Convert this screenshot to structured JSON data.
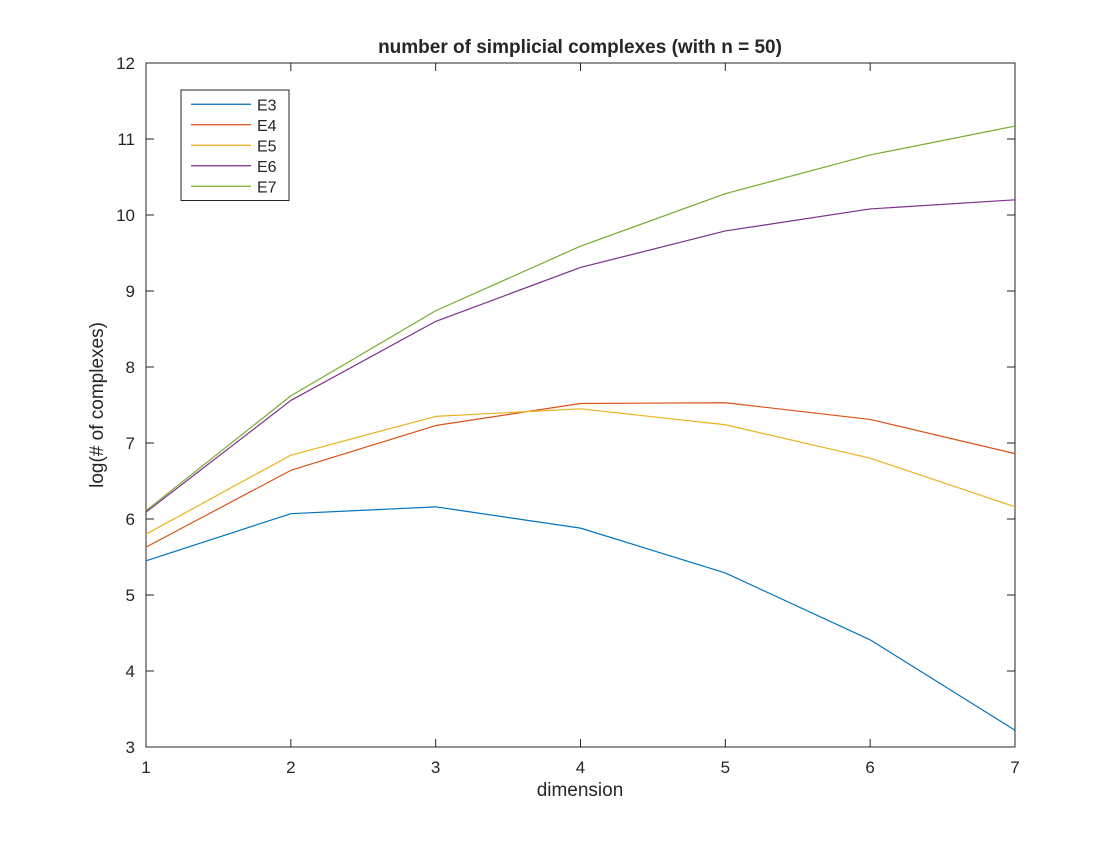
{
  "chart_data": {
    "type": "line",
    "title": "number of simplicial complexes (with n = 50)",
    "xlabel": "dimension",
    "ylabel": "log(# of complexes)",
    "xlim": [
      1,
      7
    ],
    "ylim": [
      3,
      12
    ],
    "xticks": [
      "1",
      "2",
      "3",
      "4",
      "5",
      "6",
      "7"
    ],
    "yticks": [
      "3",
      "4",
      "5",
      "6",
      "7",
      "8",
      "9",
      "10",
      "11",
      "12"
    ],
    "grid": false,
    "legend_position": "top-left",
    "x": [
      1,
      2,
      3,
      4,
      5,
      6,
      7
    ],
    "series": [
      {
        "name": "E3",
        "color": "#0072BD",
        "values": [
          5.45,
          6.07,
          6.16,
          5.88,
          5.29,
          4.41,
          3.22
        ]
      },
      {
        "name": "E4",
        "color": "#D95319",
        "values": [
          5.63,
          6.64,
          7.23,
          7.52,
          7.53,
          7.31,
          6.86
        ]
      },
      {
        "name": "E5",
        "color": "#EDB120",
        "values": [
          5.8,
          6.84,
          7.35,
          7.45,
          7.24,
          6.8,
          6.16
        ]
      },
      {
        "name": "E6",
        "color": "#7E2F8E",
        "values": [
          6.09,
          7.56,
          8.6,
          9.31,
          9.79,
          10.08,
          10.2
        ]
      },
      {
        "name": "E7",
        "color": "#77AC30",
        "values": [
          6.11,
          7.62,
          8.74,
          9.59,
          10.28,
          10.79,
          11.17
        ]
      }
    ]
  }
}
